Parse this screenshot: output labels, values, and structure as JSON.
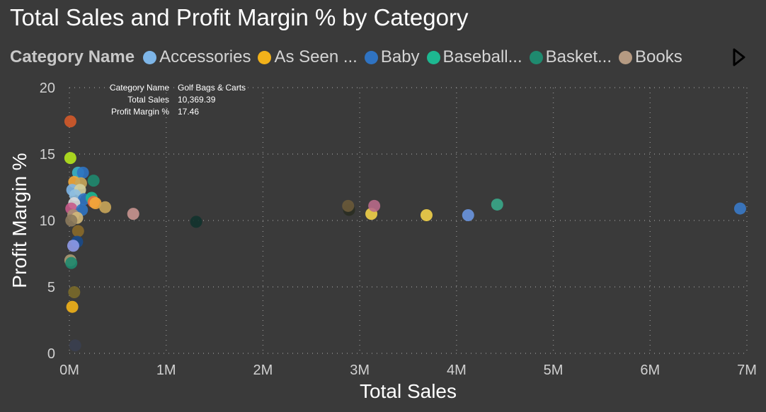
{
  "title": "Total Sales and Profit Margin % by Category",
  "legend": {
    "title": "Category Name",
    "items": [
      {
        "label": "Accessories",
        "color": "#7eb6e8"
      },
      {
        "label": "As Seen ...",
        "color": "#f2b21a"
      },
      {
        "label": "Baby",
        "color": "#2f73c2"
      },
      {
        "label": "Baseball...",
        "color": "#1db891"
      },
      {
        "label": "Basket...",
        "color": "#1f8a6f"
      },
      {
        "label": "Books",
        "color": "#b59a82"
      }
    ],
    "next_icon": "chevron-right-icon"
  },
  "tooltip": {
    "rows": [
      {
        "key": "Category Name",
        "value": "Golf Bags & Carts"
      },
      {
        "key": "Total Sales",
        "value": "10,369.39"
      },
      {
        "key": "Profit Margin %",
        "value": "17.46"
      }
    ]
  },
  "chart_data": {
    "type": "scatter",
    "title": "Total Sales and Profit Margin % by Category",
    "xlabel": "Total Sales",
    "ylabel": "Profit Margin %",
    "xlim": [
      0,
      7000000
    ],
    "ylim": [
      0,
      20
    ],
    "x_ticks": [
      0,
      1000000,
      2000000,
      3000000,
      4000000,
      5000000,
      6000000,
      7000000
    ],
    "x_tick_labels": [
      "0M",
      "1M",
      "2M",
      "3M",
      "4M",
      "5M",
      "6M",
      "7M"
    ],
    "y_ticks": [
      0,
      5,
      10,
      15,
      20
    ],
    "y_tick_labels": [
      "0",
      "5",
      "10",
      "15",
      "20"
    ],
    "grid": true,
    "legend_position": "top",
    "points": [
      {
        "x": 10369.39,
        "y": 17.46,
        "color": "#d45a2a"
      },
      {
        "x": 10000,
        "y": 14.7,
        "color": "#b5e61d"
      },
      {
        "x": 90000,
        "y": 13.6,
        "color": "#3ab2c8"
      },
      {
        "x": 140000,
        "y": 13.6,
        "color": "#2f73c2"
      },
      {
        "x": 250000,
        "y": 13.0,
        "color": "#1f8a6f"
      },
      {
        "x": 50000,
        "y": 12.9,
        "color": "#f2a93b"
      },
      {
        "x": 120000,
        "y": 12.8,
        "color": "#c9a65a"
      },
      {
        "x": 30000,
        "y": 12.3,
        "color": "#7eb6e8"
      },
      {
        "x": 110000,
        "y": 12.3,
        "color": "#d3cfa0"
      },
      {
        "x": 60000,
        "y": 11.9,
        "color": "#8fbfe0"
      },
      {
        "x": 150000,
        "y": 11.6,
        "color": "#2f73c2"
      },
      {
        "x": 230000,
        "y": 11.7,
        "color": "#1db891"
      },
      {
        "x": 250000,
        "y": 11.4,
        "color": "#ef6c3a"
      },
      {
        "x": 270000,
        "y": 11.3,
        "color": "#f2a93b"
      },
      {
        "x": 50000,
        "y": 11.3,
        "color": "#d9d9d9"
      },
      {
        "x": 20000,
        "y": 10.9,
        "color": "#c65a8a"
      },
      {
        "x": 130000,
        "y": 10.8,
        "color": "#2f73c2"
      },
      {
        "x": 370000,
        "y": 11.0,
        "color": "#c9a65a"
      },
      {
        "x": 40000,
        "y": 10.4,
        "color": "#a98f74"
      },
      {
        "x": 80000,
        "y": 10.2,
        "color": "#d1b87a"
      },
      {
        "x": 20000,
        "y": 10.0,
        "color": "#8c7a5c"
      },
      {
        "x": 660000,
        "y": 10.5,
        "color": "#c99590"
      },
      {
        "x": 1310000,
        "y": 9.9,
        "color": "#12332e"
      },
      {
        "x": 90000,
        "y": 9.2,
        "color": "#8a6a2a"
      },
      {
        "x": 80000,
        "y": 8.4,
        "color": "#1a4a8a"
      },
      {
        "x": 40000,
        "y": 8.1,
        "color": "#8f9ae8"
      },
      {
        "x": 10000,
        "y": 7.0,
        "color": "#a89a72"
      },
      {
        "x": 20000,
        "y": 6.8,
        "color": "#1f8a6f"
      },
      {
        "x": 50000,
        "y": 4.6,
        "color": "#7a6a2a"
      },
      {
        "x": 30000,
        "y": 3.5,
        "color": "#f2b21a"
      },
      {
        "x": 60000,
        "y": 0.6,
        "color": "#3a3f50"
      },
      {
        "x": 2890000,
        "y": 10.8,
        "color": "#2a2e22"
      },
      {
        "x": 2880000,
        "y": 11.1,
        "color": "#6a5a3a"
      },
      {
        "x": 3120000,
        "y": 10.5,
        "color": "#f2d24a"
      },
      {
        "x": 3150000,
        "y": 11.1,
        "color": "#b86a8a"
      },
      {
        "x": 3690000,
        "y": 10.4,
        "color": "#f2d24a"
      },
      {
        "x": 4120000,
        "y": 10.4,
        "color": "#6a96e0"
      },
      {
        "x": 4420000,
        "y": 11.2,
        "color": "#3aa88a"
      },
      {
        "x": 6930000,
        "y": 10.9,
        "color": "#3a7ac8"
      }
    ]
  }
}
